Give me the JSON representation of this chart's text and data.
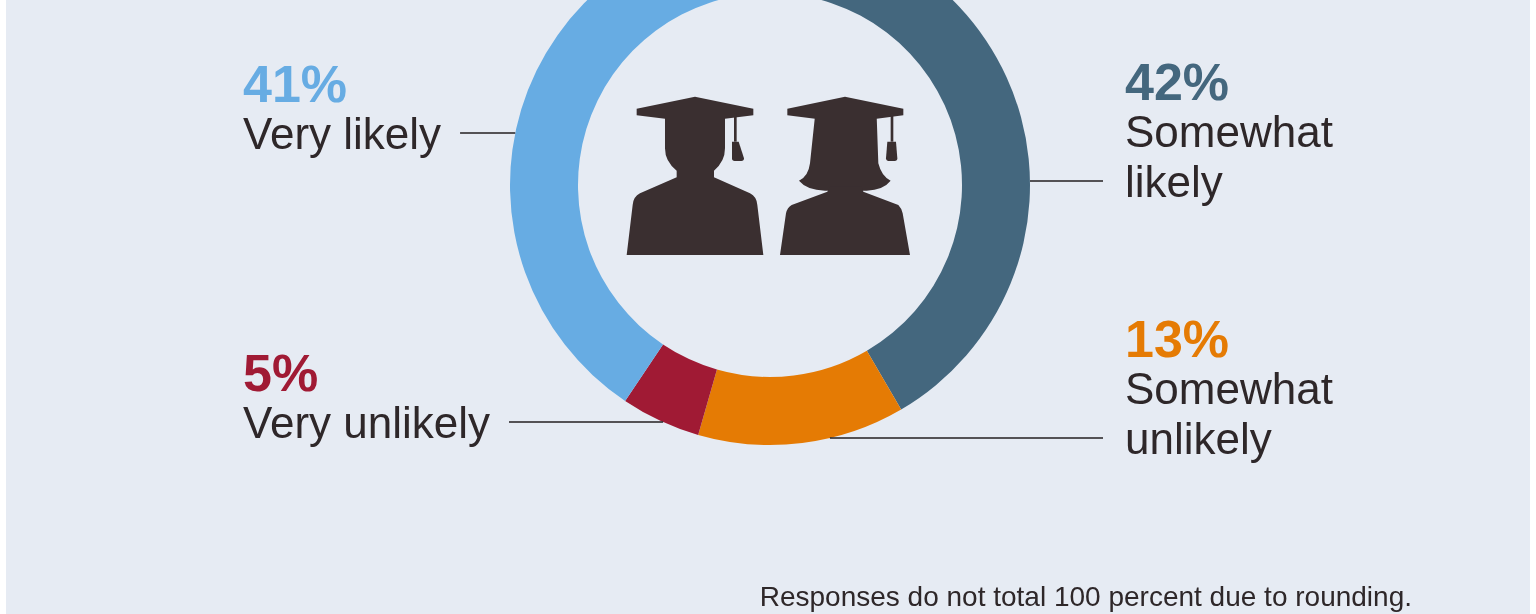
{
  "chart_data": {
    "type": "donut",
    "categories": [
      "Somewhat likely",
      "Somewhat unlikely",
      "Very unlikely",
      "Very likely"
    ],
    "values": [
      42,
      13,
      5,
      41
    ],
    "colors": [
      "#44677e",
      "#e57b04",
      "#a01a34",
      "#67ace3"
    ],
    "value_labels": [
      "42%",
      "13%",
      "5%",
      "41%"
    ],
    "annotations": [
      "Responses do not total 100 percent due to rounding."
    ]
  }
}
